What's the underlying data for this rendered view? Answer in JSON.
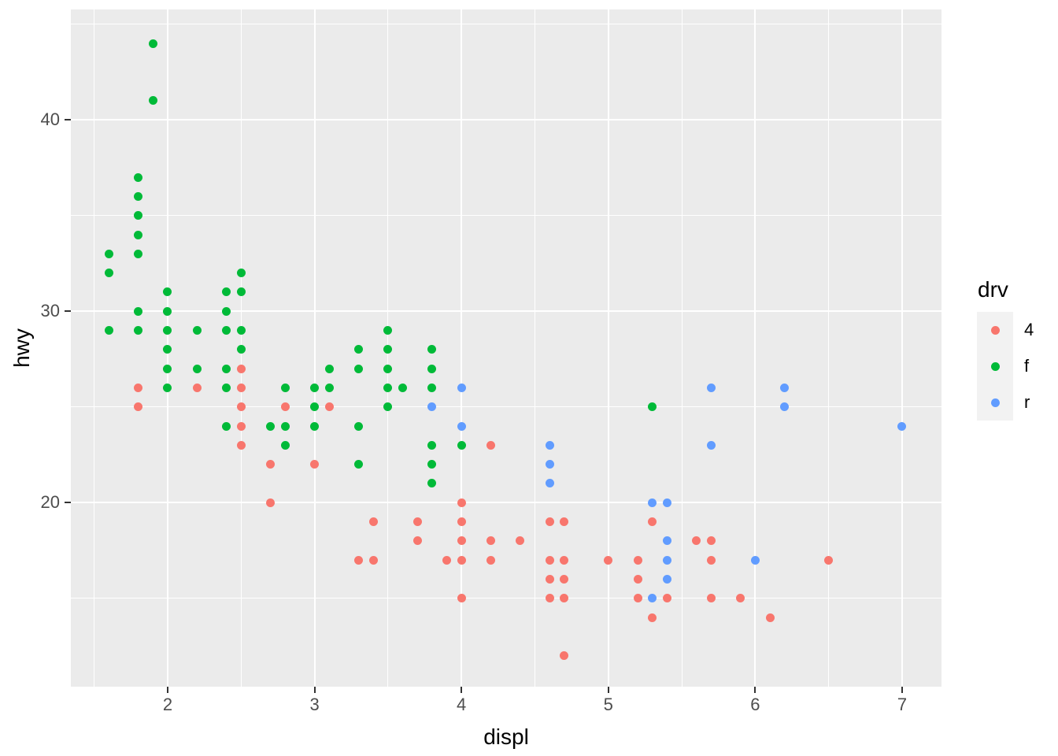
{
  "chart_data": {
    "type": "scatter",
    "title": "",
    "xlabel": "displ",
    "ylabel": "hwy",
    "xlim": [
      1.341,
      7.268
    ],
    "ylim": [
      10.38,
      45.77
    ],
    "x_tick_values": [
      2,
      3,
      4,
      5,
      6,
      7
    ],
    "x_tick_labels": [
      "2",
      "3",
      "4",
      "5",
      "6",
      "7"
    ],
    "y_tick_values": [
      20,
      30,
      40
    ],
    "y_tick_labels": [
      "20",
      "30",
      "40"
    ],
    "x_minor_ticks": [
      1.5,
      2.5,
      3.5,
      4.5,
      5.5,
      6.5
    ],
    "y_minor_ticks": [
      15,
      25,
      35,
      45
    ],
    "grid": true,
    "legend": {
      "title": "drv",
      "position": "right",
      "entries": [
        {
          "label": "4",
          "color": "#F8766D"
        },
        {
          "label": "f",
          "color": "#00BA38"
        },
        {
          "label": "r",
          "color": "#619CFF"
        }
      ]
    },
    "series": [
      {
        "name": "4",
        "color": "#F8766D",
        "points": [
          [
            1.8,
            26
          ],
          [
            1.8,
            25
          ],
          [
            2.2,
            26
          ],
          [
            2.5,
            27
          ],
          [
            2.5,
            26
          ],
          [
            2.5,
            25
          ],
          [
            2.5,
            24
          ],
          [
            2.5,
            23
          ],
          [
            2.7,
            22
          ],
          [
            2.7,
            20
          ],
          [
            2.8,
            25
          ],
          [
            3.0,
            22
          ],
          [
            3.1,
            25
          ],
          [
            3.3,
            17
          ],
          [
            3.4,
            19
          ],
          [
            3.4,
            17
          ],
          [
            3.7,
            19
          ],
          [
            3.7,
            18
          ],
          [
            3.9,
            17
          ],
          [
            4.0,
            20
          ],
          [
            4.0,
            19
          ],
          [
            4.0,
            18
          ],
          [
            4.0,
            17
          ],
          [
            4.0,
            15
          ],
          [
            4.2,
            23
          ],
          [
            4.2,
            18
          ],
          [
            4.2,
            17
          ],
          [
            4.4,
            18
          ],
          [
            4.6,
            19
          ],
          [
            4.6,
            17
          ],
          [
            4.6,
            16
          ],
          [
            4.6,
            15
          ],
          [
            4.7,
            19
          ],
          [
            4.7,
            17
          ],
          [
            4.7,
            16
          ],
          [
            4.7,
            15
          ],
          [
            4.7,
            12
          ],
          [
            5.0,
            17
          ],
          [
            5.2,
            17
          ],
          [
            5.2,
            16
          ],
          [
            5.2,
            15
          ],
          [
            5.3,
            19
          ],
          [
            5.3,
            14
          ],
          [
            5.4,
            15
          ],
          [
            5.6,
            18
          ],
          [
            5.7,
            18
          ],
          [
            5.7,
            17
          ],
          [
            5.7,
            15
          ],
          [
            5.9,
            15
          ],
          [
            6.1,
            14
          ],
          [
            6.5,
            17
          ]
        ]
      },
      {
        "name": "f",
        "color": "#00BA38",
        "points": [
          [
            1.6,
            33
          ],
          [
            1.6,
            32
          ],
          [
            1.6,
            29
          ],
          [
            1.8,
            37
          ],
          [
            1.8,
            36
          ],
          [
            1.8,
            35
          ],
          [
            1.8,
            34
          ],
          [
            1.8,
            33
          ],
          [
            1.8,
            30
          ],
          [
            1.8,
            29
          ],
          [
            1.9,
            44
          ],
          [
            1.9,
            41
          ],
          [
            2.0,
            31
          ],
          [
            2.0,
            30
          ],
          [
            2.0,
            29
          ],
          [
            2.0,
            28
          ],
          [
            2.0,
            27
          ],
          [
            2.0,
            26
          ],
          [
            2.2,
            29
          ],
          [
            2.2,
            27
          ],
          [
            2.4,
            31
          ],
          [
            2.4,
            30
          ],
          [
            2.4,
            29
          ],
          [
            2.4,
            27
          ],
          [
            2.4,
            26
          ],
          [
            2.4,
            24
          ],
          [
            2.5,
            32
          ],
          [
            2.5,
            31
          ],
          [
            2.5,
            29
          ],
          [
            2.5,
            28
          ],
          [
            2.7,
            24
          ],
          [
            2.8,
            26
          ],
          [
            2.8,
            24
          ],
          [
            2.8,
            23
          ],
          [
            3.0,
            26
          ],
          [
            3.0,
            25
          ],
          [
            3.0,
            24
          ],
          [
            3.1,
            27
          ],
          [
            3.1,
            26
          ],
          [
            3.3,
            28
          ],
          [
            3.3,
            27
          ],
          [
            3.3,
            24
          ],
          [
            3.3,
            22
          ],
          [
            3.5,
            29
          ],
          [
            3.5,
            28
          ],
          [
            3.5,
            27
          ],
          [
            3.5,
            26
          ],
          [
            3.5,
            25
          ],
          [
            3.6,
            26
          ],
          [
            3.8,
            28
          ],
          [
            3.8,
            27
          ],
          [
            3.8,
            26
          ],
          [
            3.8,
            23
          ],
          [
            3.8,
            22
          ],
          [
            3.8,
            21
          ],
          [
            4.0,
            23
          ],
          [
            5.3,
            25
          ]
        ]
      },
      {
        "name": "r",
        "color": "#619CFF",
        "points": [
          [
            3.8,
            25
          ],
          [
            4.0,
            26
          ],
          [
            4.0,
            24
          ],
          [
            4.6,
            23
          ],
          [
            4.6,
            22
          ],
          [
            4.6,
            21
          ],
          [
            5.3,
            20
          ],
          [
            5.3,
            15
          ],
          [
            5.4,
            20
          ],
          [
            5.4,
            18
          ],
          [
            5.4,
            17
          ],
          [
            5.4,
            16
          ],
          [
            5.7,
            26
          ],
          [
            5.7,
            23
          ],
          [
            6.0,
            17
          ],
          [
            6.2,
            26
          ],
          [
            6.2,
            25
          ],
          [
            7.0,
            24
          ]
        ]
      }
    ]
  },
  "style": {
    "background": "#FFFFFF",
    "panel_bg": "#EBEBEB",
    "grid_color": "#FFFFFF",
    "tick_mark_color": "#333333",
    "tick_label_color": "#4D4D4D",
    "title_color": "#000000",
    "legend_key_bg": "#F2F2F2"
  }
}
